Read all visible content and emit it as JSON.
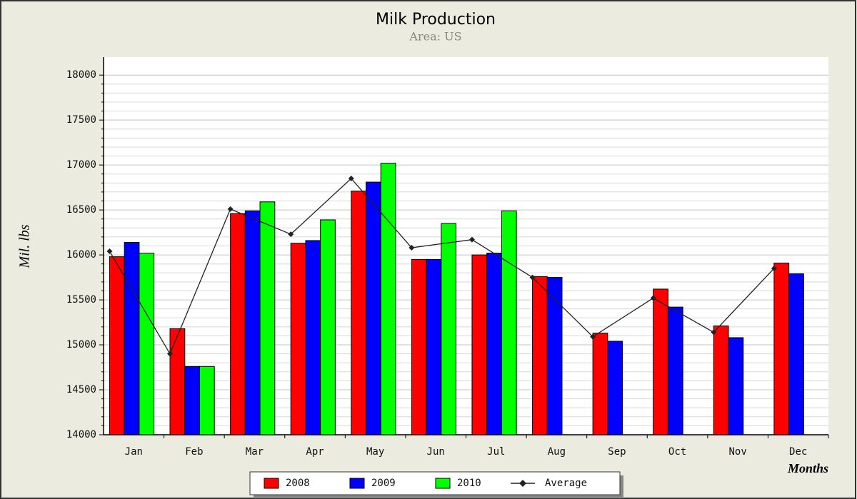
{
  "chart_data": {
    "type": "bar",
    "title": "Milk Production",
    "subtitle": "Area: US",
    "y_label": "Mil. lbs",
    "x_label": "Months",
    "categories": [
      "Jan",
      "Feb",
      "Mar",
      "Apr",
      "May",
      "Jun",
      "Jul",
      "Aug",
      "Sep",
      "Oct",
      "Nov",
      "Dec"
    ],
    "series": [
      {
        "name": "2008",
        "color": "#ff0000",
        "values": [
          15980,
          15180,
          16460,
          16130,
          16710,
          15950,
          16000,
          15760,
          15130,
          15620,
          15210,
          15910
        ]
      },
      {
        "name": "2009",
        "color": "#0000ff",
        "values": [
          16140,
          14760,
          16490,
          16160,
          16810,
          15950,
          16020,
          15750,
          15040,
          15420,
          15080,
          15790
        ]
      },
      {
        "name": "2010",
        "color": "#00ff00",
        "values": [
          16020,
          14760,
          16590,
          16390,
          17020,
          16350,
          16490,
          null,
          null,
          null,
          null,
          null
        ]
      },
      {
        "name": "Average",
        "type": "line",
        "color": "#222222",
        "values": [
          16040,
          14900,
          16510,
          16230,
          16850,
          16080,
          16170,
          15750,
          15090,
          15520,
          15140,
          15850
        ]
      }
    ],
    "ylim": [
      14000,
      18200
    ],
    "yticks": [
      14000,
      14500,
      15000,
      15500,
      16000,
      16500,
      17000,
      17500,
      18000
    ],
    "grid": true
  }
}
